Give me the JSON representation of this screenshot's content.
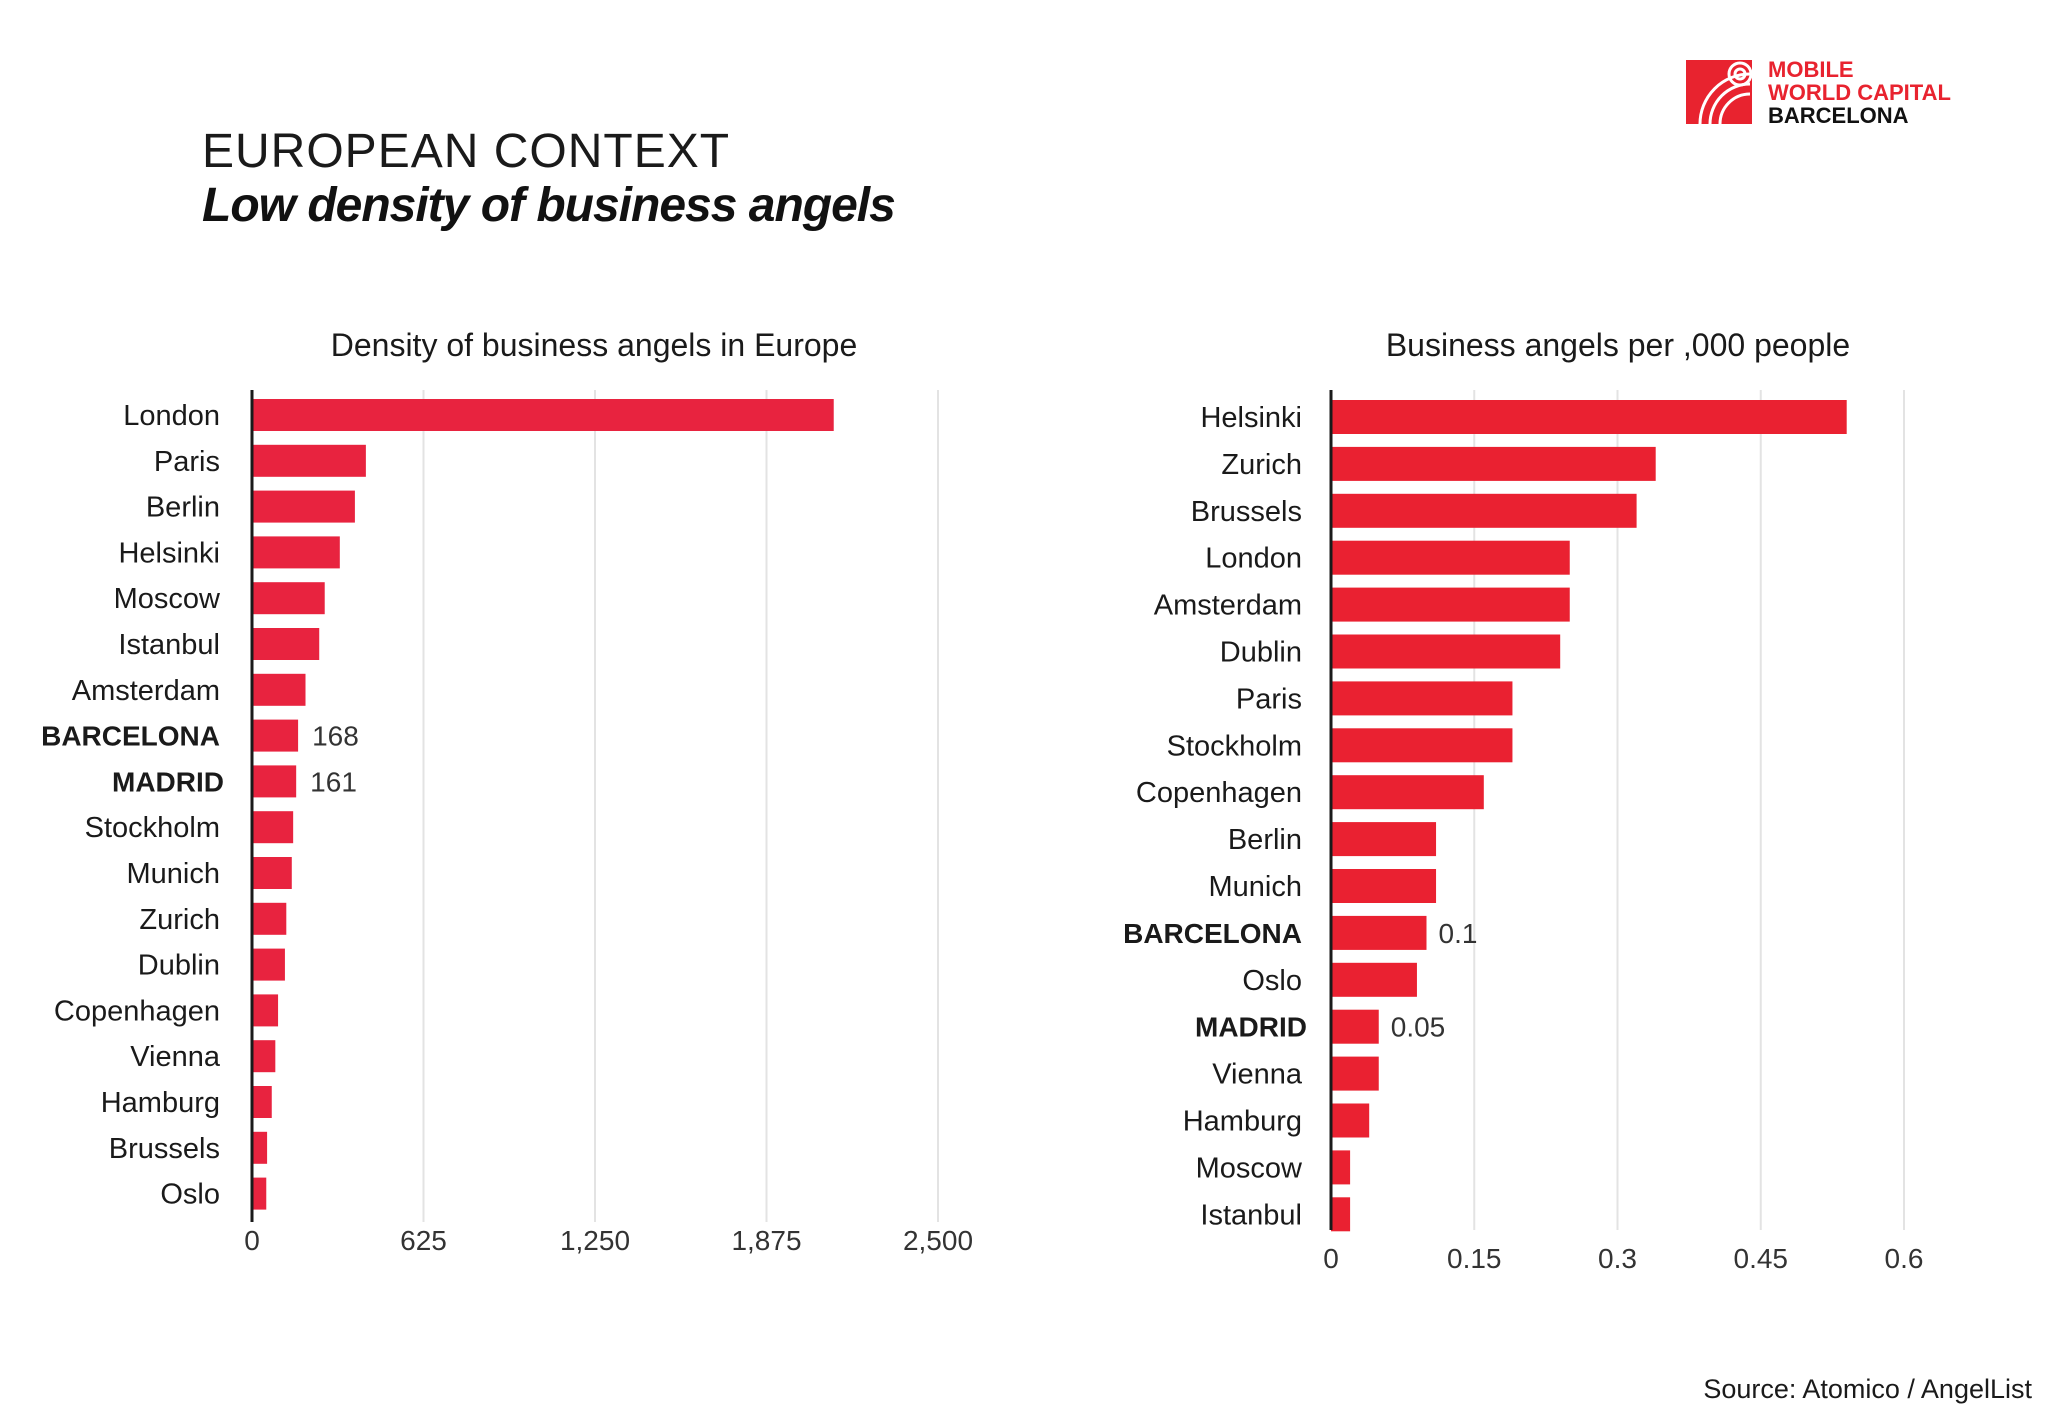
{
  "header": {
    "kicker": "EUROPEAN CONTEXT",
    "headline": "Low density of business angels"
  },
  "logo": {
    "line1": "MOBILE",
    "line2": "WORLD CAPITAL",
    "line3": "BARCELONA",
    "brand_color": "#e8232f"
  },
  "source": "Source: Atomico / AngelList",
  "chart_data": [
    {
      "type": "bar",
      "orientation": "horizontal",
      "title": "Density of business angels in Europe",
      "categories": [
        "London",
        "Paris",
        "Berlin",
        "Helsinki",
        "Moscow",
        "Istanbul",
        "Amsterdam",
        "BARCELONA",
        "MADRID",
        "Stockholm",
        "Munich",
        "Zurich",
        "Dublin",
        "Copenhagen",
        "Vienna",
        "Hamburg",
        "Brussels",
        "Oslo"
      ],
      "values": [
        2120,
        415,
        375,
        320,
        265,
        245,
        195,
        168,
        161,
        150,
        145,
        125,
        120,
        95,
        85,
        72,
        55,
        52
      ],
      "highlight": [
        "BARCELONA",
        "MADRID"
      ],
      "data_labels": {
        "BARCELONA": "168",
        "MADRID": "161"
      },
      "xlim": [
        0,
        2500
      ],
      "xticks": [
        "0",
        "625",
        "1,250",
        "1,875",
        "2,500"
      ],
      "grid": true,
      "bar_color": "#e8233f"
    },
    {
      "type": "bar",
      "orientation": "horizontal",
      "title": "Business angels per ,000 people",
      "categories": [
        "Helsinki",
        "Zurich",
        "Brussels",
        "London",
        "Amsterdam",
        "Dublin",
        "Paris",
        "Stockholm",
        "Copenhagen",
        "Berlin",
        "Munich",
        "BARCELONA",
        "Oslo",
        "MADRID",
        "Vienna",
        "Hamburg",
        "Moscow",
        "Istanbul"
      ],
      "values": [
        0.54,
        0.34,
        0.32,
        0.25,
        0.25,
        0.24,
        0.19,
        0.19,
        0.16,
        0.11,
        0.11,
        0.1,
        0.09,
        0.05,
        0.05,
        0.04,
        0.02,
        0.02
      ],
      "highlight": [
        "BARCELONA",
        "MADRID"
      ],
      "data_labels": {
        "BARCELONA": "0.1",
        "MADRID": "0.05"
      },
      "xlim": [
        0,
        0.6
      ],
      "xticks": [
        "0",
        "0.15",
        "0.3",
        "0.45",
        "0.6"
      ],
      "grid": true,
      "bar_color": "#ea2131"
    }
  ]
}
